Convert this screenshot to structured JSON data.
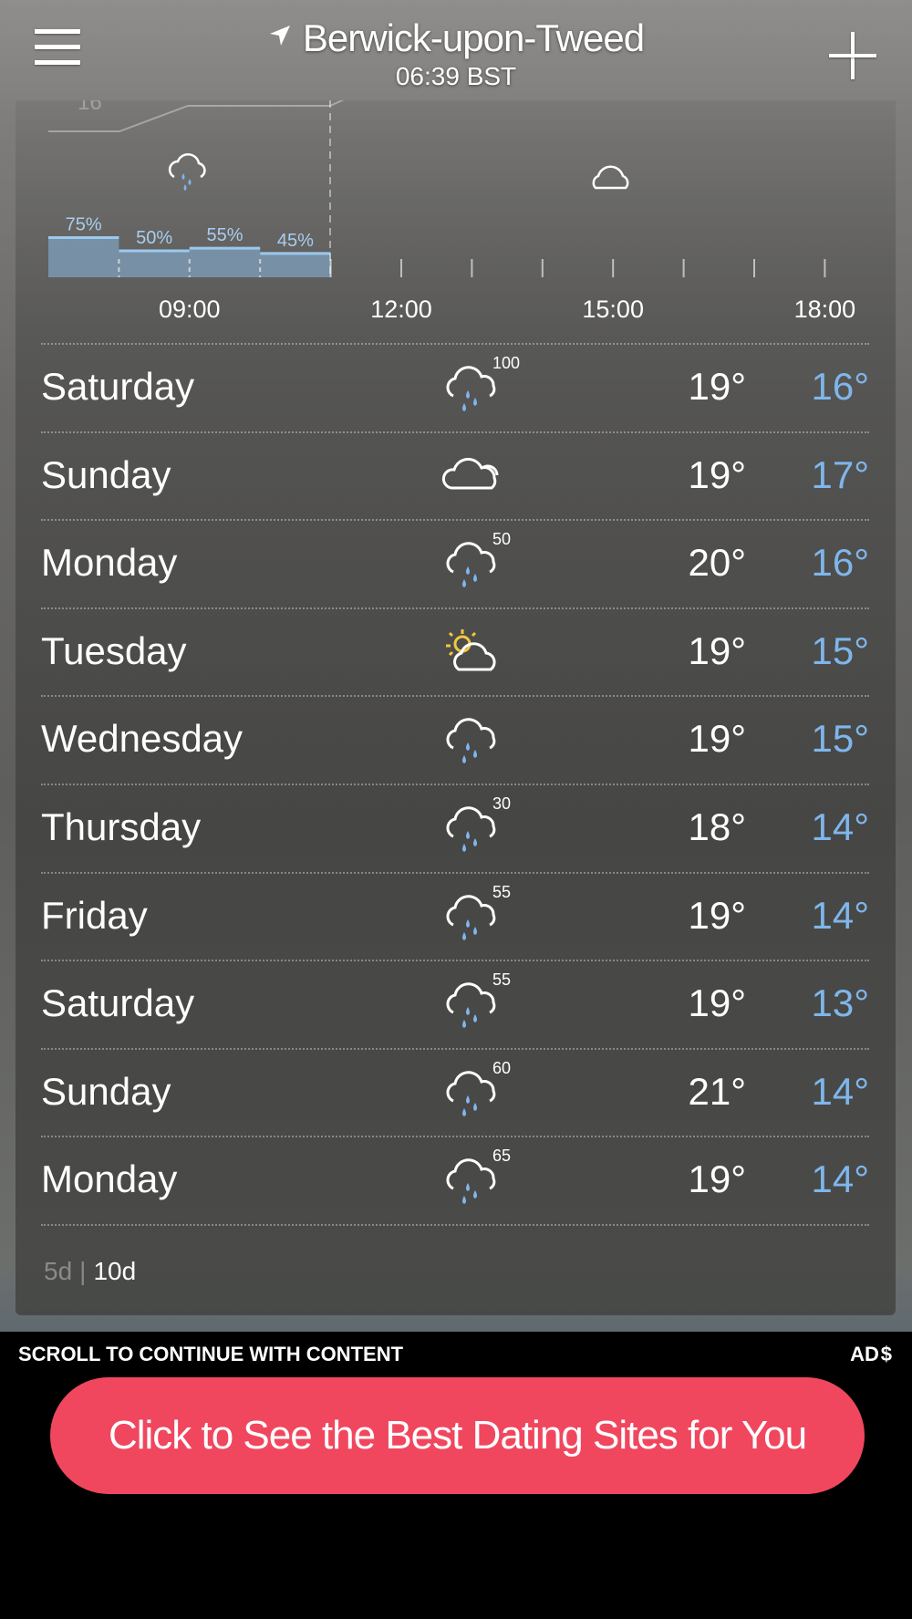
{
  "header": {
    "location": "Berwick-upon-Tweed",
    "time": "06:39 BST",
    "menu_icon": "hamburger-menu-icon",
    "add_icon": "plus-icon",
    "location_icon": "location-arrow-icon"
  },
  "hourly": {
    "temp_label": "16°",
    "precip": [
      {
        "label": "75%",
        "value": 75
      },
      {
        "label": "50%",
        "value": 50
      },
      {
        "label": "55%",
        "value": 55
      },
      {
        "label": "45%",
        "value": 45
      }
    ],
    "icons": [
      "rain-icon",
      "cloud-icon"
    ],
    "times": [
      "09:00",
      "12:00",
      "15:00",
      "18:00"
    ]
  },
  "forecast": [
    {
      "day": "Saturday",
      "icon": "rain",
      "prob": "100",
      "high": "19°",
      "low": "16°"
    },
    {
      "day": "Sunday",
      "icon": "cloudy",
      "prob": "",
      "high": "19°",
      "low": "17°"
    },
    {
      "day": "Monday",
      "icon": "rain",
      "prob": "50",
      "high": "20°",
      "low": "16°"
    },
    {
      "day": "Tuesday",
      "icon": "partly-sunny",
      "prob": "",
      "high": "19°",
      "low": "15°"
    },
    {
      "day": "Wednesday",
      "icon": "rain",
      "prob": "",
      "high": "19°",
      "low": "15°"
    },
    {
      "day": "Thursday",
      "icon": "rain",
      "prob": "30",
      "high": "18°",
      "low": "14°"
    },
    {
      "day": "Friday",
      "icon": "rain",
      "prob": "55",
      "high": "19°",
      "low": "14°"
    },
    {
      "day": "Saturday",
      "icon": "rain",
      "prob": "55",
      "high": "19°",
      "low": "13°"
    },
    {
      "day": "Sunday",
      "icon": "rain",
      "prob": "60",
      "high": "21°",
      "low": "14°"
    },
    {
      "day": "Monday",
      "icon": "rain",
      "prob": "65",
      "high": "19°",
      "low": "14°"
    }
  ],
  "range": {
    "option_5d": "5d",
    "separator": "|",
    "option_10d": "10d",
    "selected": "10d"
  },
  "ad": {
    "scroll_text": "SCROLL TO CONTINUE WITH CONTENT",
    "ad_label": "AD",
    "button": "Click to See the Best Dating Sites for You",
    "button_color": "#f0475f"
  },
  "colors": {
    "low_temp": "#7fb6ec",
    "precip_bar": "#7fa0bd"
  }
}
